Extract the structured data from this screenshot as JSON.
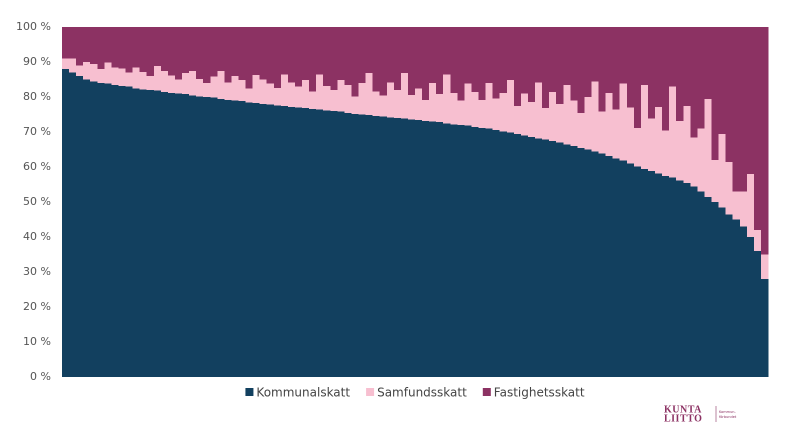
{
  "chart_data": {
    "type": "stacked_bar",
    "categories": [
      null,
      null,
      null,
      null,
      null,
      null,
      null,
      null,
      null,
      null,
      null,
      null,
      null,
      null,
      null,
      null,
      null,
      null,
      null,
      null,
      null,
      null,
      null,
      null,
      null,
      null,
      null,
      null,
      null,
      null,
      null,
      null,
      null,
      null,
      null,
      null,
      null,
      null,
      null,
      null,
      null,
      null,
      null,
      null,
      null,
      null,
      null,
      null,
      null,
      null,
      null,
      null,
      null,
      null,
      null,
      null,
      null,
      null,
      null,
      null,
      null,
      null,
      null,
      null,
      null,
      null,
      null,
      null,
      null,
      null,
      null,
      null,
      null,
      null,
      null,
      null,
      null,
      null,
      null,
      null,
      null,
      null,
      null,
      null,
      null,
      null,
      null,
      null,
      null,
      null,
      null,
      null,
      null,
      null,
      null,
      null,
      null,
      null,
      null,
      null
    ],
    "series": [
      {
        "name": "Kommunalskatt",
        "color": "#12405f",
        "values": [
          88,
          87,
          86,
          85,
          84.5,
          84,
          83.8,
          83.5,
          83.2,
          83,
          82.5,
          82.2,
          82,
          81.8,
          81.5,
          81.2,
          81,
          80.8,
          80.5,
          80.2,
          80,
          79.8,
          79.5,
          79.2,
          79,
          78.8,
          78.5,
          78.3,
          78,
          77.8,
          77.6,
          77.4,
          77.2,
          77,
          76.8,
          76.6,
          76.4,
          76.2,
          76,
          75.8,
          75.5,
          75.2,
          75,
          74.8,
          74.6,
          74.4,
          74.2,
          74,
          73.8,
          73.6,
          73.4,
          73.2,
          73,
          72.8,
          72.5,
          72.2,
          72,
          71.8,
          71.5,
          71.2,
          71,
          70.6,
          70.2,
          69.8,
          69.4,
          69,
          68.6,
          68.2,
          67.8,
          67.4,
          67,
          66.5,
          66,
          65.5,
          65,
          64.4,
          63.8,
          63.2,
          62.5,
          61.8,
          61,
          60.2,
          59.5,
          58.8,
          58.2,
          57.5,
          57,
          56.2,
          55.5,
          54.5,
          53,
          51.5,
          50,
          48.5,
          46.5,
          45,
          43,
          40,
          36,
          28
        ]
      },
      {
        "name": "Samfundsskatt",
        "color": "#f7bfd0",
        "values": [
          3,
          4,
          3,
          5,
          5,
          4,
          6,
          5,
          5,
          4,
          6,
          5,
          4,
          7,
          6,
          5,
          4,
          6,
          7,
          5,
          4,
          6,
          8,
          5,
          7,
          6,
          4,
          8,
          7,
          6,
          5,
          9,
          7,
          6,
          8,
          5,
          10,
          7,
          6,
          9,
          8,
          5,
          9,
          12,
          7,
          6,
          10,
          8,
          13,
          7,
          9,
          6,
          11,
          8,
          14,
          9,
          7,
          12,
          10,
          8,
          13,
          9,
          11,
          15,
          8,
          12,
          10,
          16,
          9,
          14,
          11,
          17,
          13,
          10,
          15,
          20,
          12,
          18,
          14,
          22,
          16,
          11,
          24,
          15,
          19,
          13,
          26,
          17,
          22,
          14,
          18,
          28,
          12,
          21,
          15,
          8,
          10,
          18,
          6,
          7
        ]
      },
      {
        "name": "Fastighetsskatt",
        "color": "#8c3263",
        "values": [
          9,
          9,
          11,
          10,
          10.5,
          12,
          10.2,
          11.5,
          11.8,
          13,
          11.5,
          12.8,
          14,
          11.2,
          12.5,
          13.8,
          15,
          13.2,
          12.5,
          14.8,
          16,
          14.2,
          12.5,
          15.8,
          14,
          15.2,
          17.5,
          13.7,
          15,
          16.2,
          17.4,
          13.6,
          15.8,
          17,
          15.2,
          18.4,
          13.6,
          16.8,
          18,
          15.2,
          16.5,
          19.8,
          16,
          13.2,
          18.4,
          19.6,
          15.8,
          18,
          13.2,
          19.4,
          17.6,
          20.8,
          16,
          19.2,
          13.5,
          18.8,
          21,
          16.2,
          18.5,
          20.8,
          16,
          20.4,
          18.8,
          15.2,
          22.6,
          19,
          21.4,
          15.8,
          23.2,
          18.6,
          22,
          16.5,
          21,
          24.5,
          20,
          15.6,
          24.2,
          18.8,
          23.5,
          16.2,
          23,
          28.8,
          16.5,
          26.2,
          22.8,
          29.5,
          17,
          26.8,
          22.5,
          31.5,
          29,
          20.5,
          38,
          30.5,
          38.5,
          47,
          47,
          42,
          58,
          65
        ]
      }
    ],
    "ylim": [
      0,
      100
    ],
    "yticks": [
      {
        "value": 0,
        "label": "0 %"
      },
      {
        "value": 10,
        "label": "10 %"
      },
      {
        "value": 20,
        "label": "20 %"
      },
      {
        "value": 30,
        "label": "30 %"
      },
      {
        "value": 40,
        "label": "40 %"
      },
      {
        "value": 50,
        "label": "50 %"
      },
      {
        "value": 60,
        "label": "60 %"
      },
      {
        "value": 70,
        "label": "70 %"
      },
      {
        "value": 80,
        "label": "80 %"
      },
      {
        "value": 90,
        "label": "90 %"
      },
      {
        "value": 100,
        "label": "100 %"
      }
    ],
    "legend": "bottom"
  },
  "logo": {
    "name_top": "KUNTA",
    "name_bottom": "LIITTO",
    "sub_top": "Kommun-",
    "sub_bottom": "förbundet"
  }
}
